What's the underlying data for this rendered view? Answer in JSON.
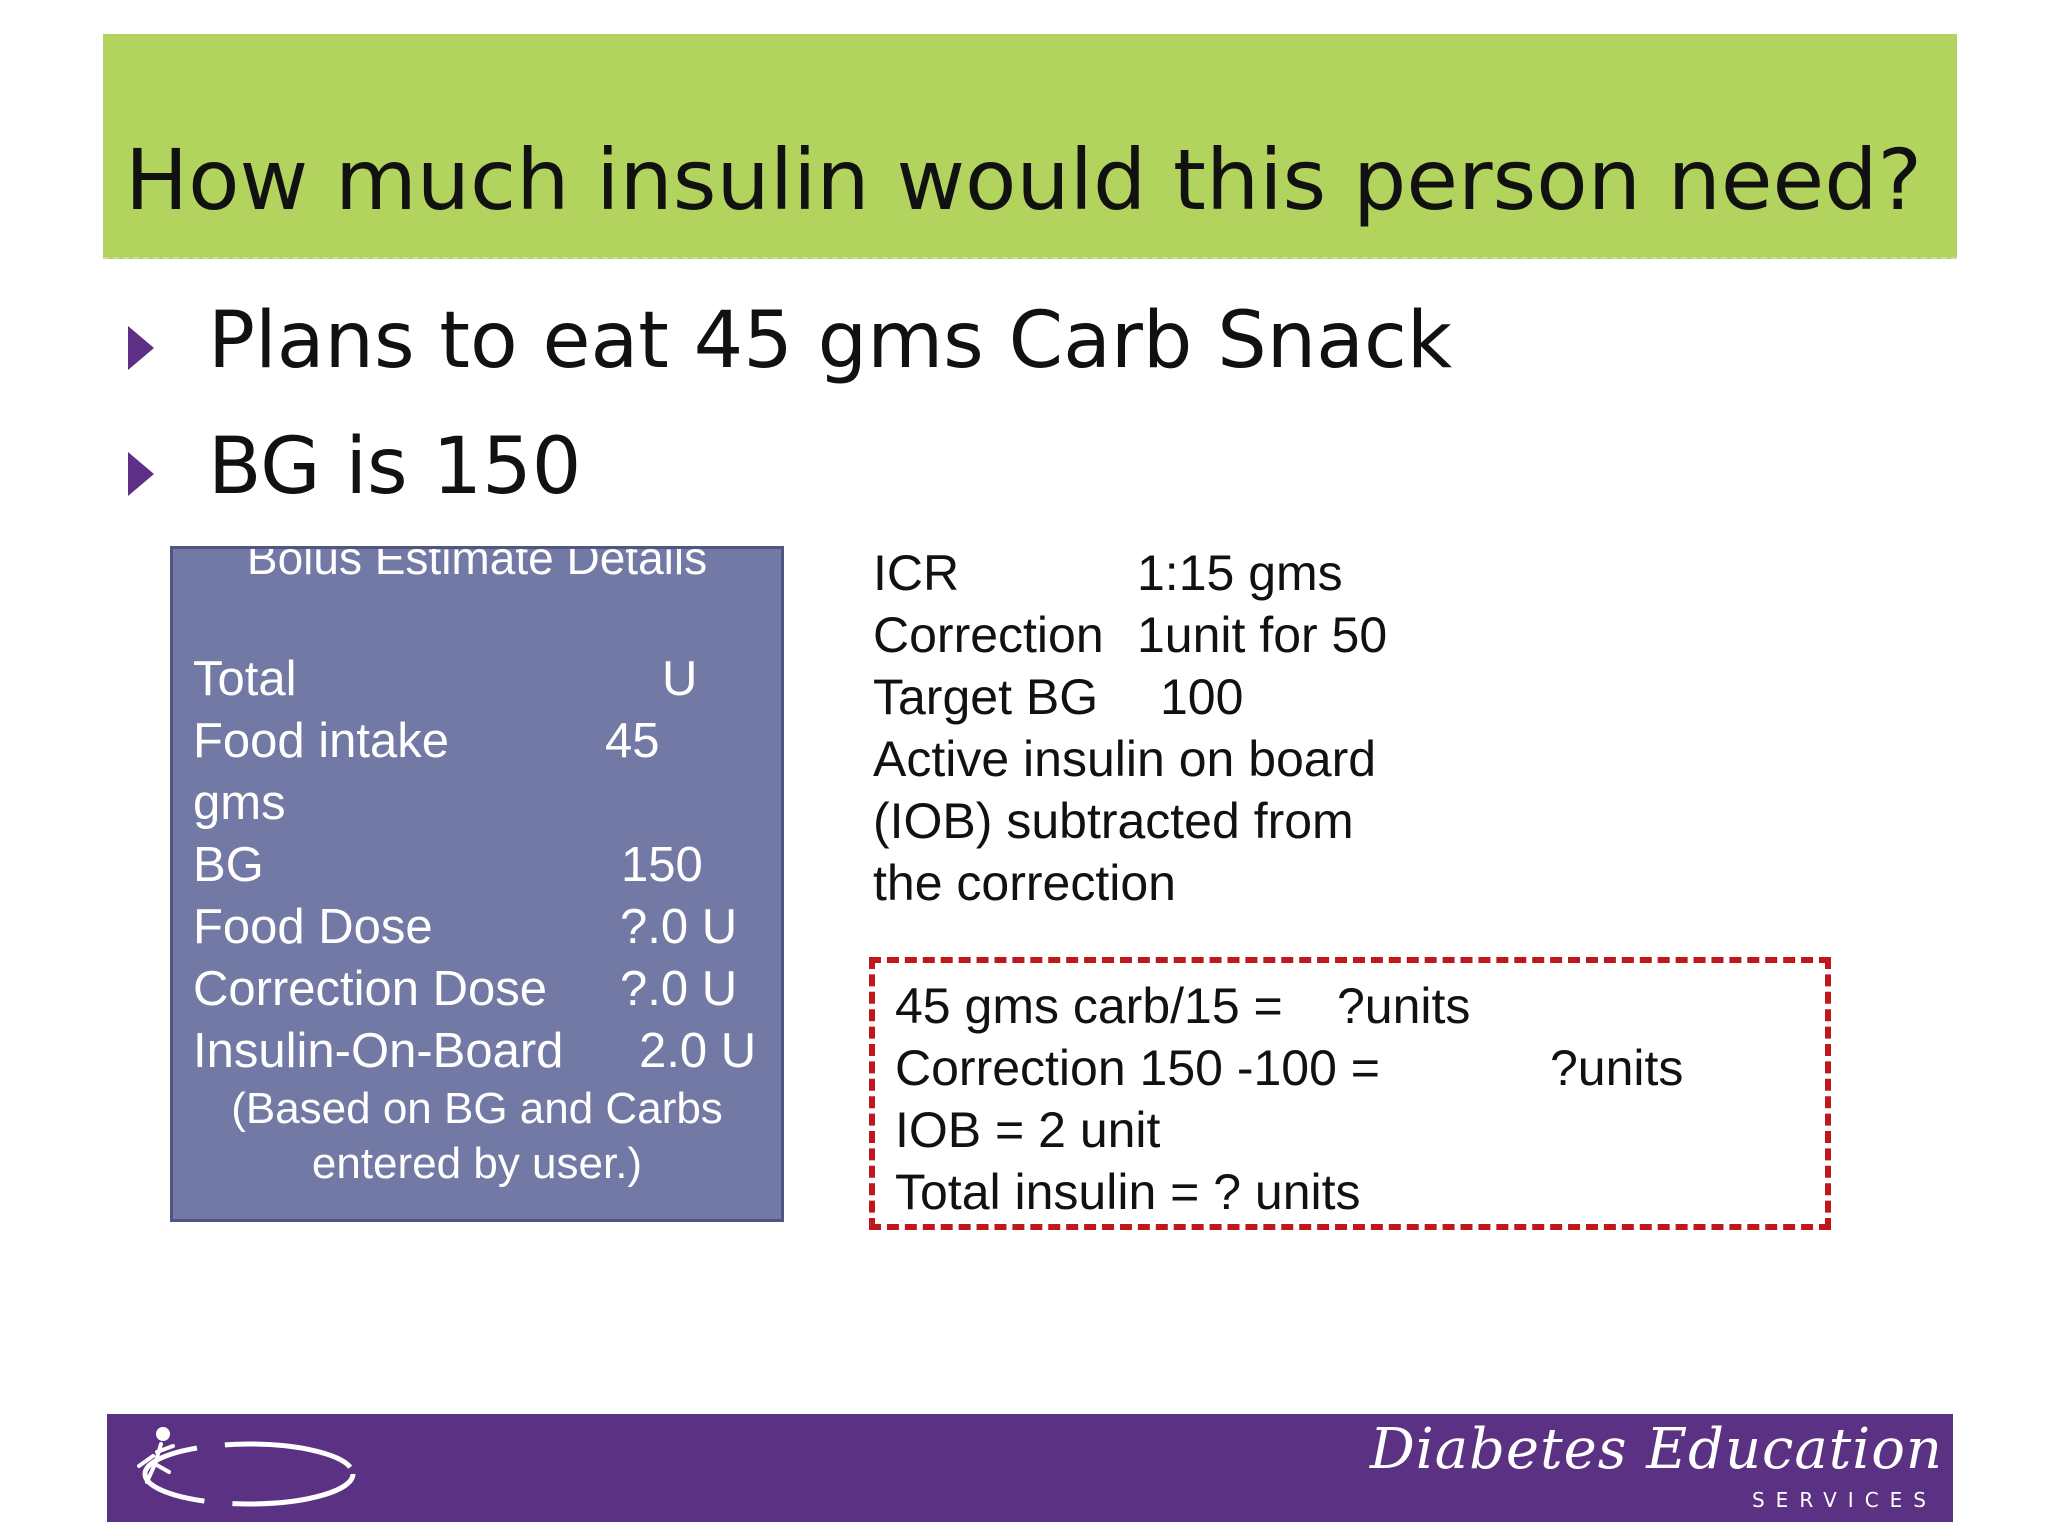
{
  "title": "How much insulin would this person need?",
  "bullets": [
    "Plans to eat 45 gms Carb Snack",
    "BG is 150"
  ],
  "bolus_estimate": {
    "title": "Bolus Estimate Details",
    "rows": [
      {
        "label": "Total",
        "value": "U"
      },
      {
        "label": "Food intake",
        "value": "45"
      },
      {
        "label": "gms",
        "value": ""
      },
      {
        "label": "BG",
        "value": "150"
      },
      {
        "label": "Food Dose",
        "value": "?.0 U"
      },
      {
        "label": "Correction Dose",
        "value": "?.0 U"
      },
      {
        "label": "Insulin-On-Board",
        "value": "2.0 U"
      }
    ],
    "note_lines": [
      "(Based on BG and Carbs",
      "entered by user.)"
    ]
  },
  "settings": {
    "icr_label": "ICR",
    "icr_value": "1:15 gms",
    "correction_label": "Correction",
    "correction_value": "1unit for 50",
    "target_label": "Target BG",
    "target_value": "100",
    "iob_lines": [
      "Active insulin on board",
      "(IOB) subtracted from",
      "the correction"
    ]
  },
  "answer": {
    "carb_line": "45 gms carb/15 =",
    "carb_result": "?units",
    "correction_line": "Correction 150 -100 =",
    "correction_result": "?units",
    "iob_line": "IOB = 2 unit",
    "total_line": "Total insulin = ?  units"
  },
  "footer": {
    "brand_name": "Diabetes Education",
    "brand_sub": "SERVICES"
  },
  "colors": {
    "title_bar": "#b2d45e",
    "bolus_box": "#7279a5",
    "answer_border": "#c0171d",
    "footer_bar": "#5b3283",
    "bullet": "#5e2f87"
  }
}
